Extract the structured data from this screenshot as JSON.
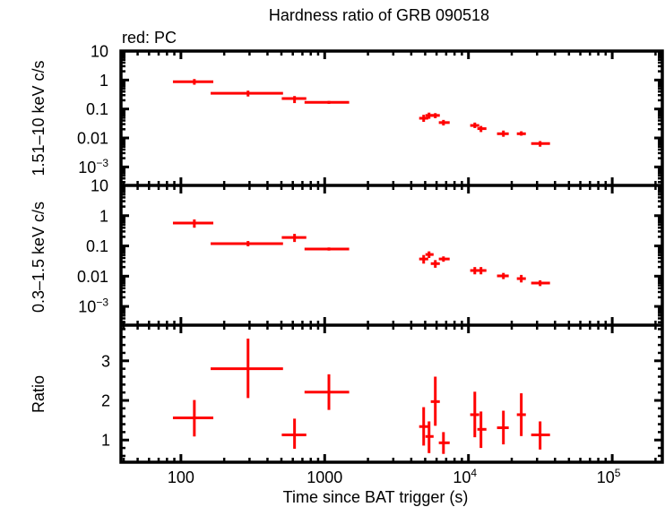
{
  "chart_data": {
    "type": "scatter",
    "title": "Hardness ratio of GRB 090518",
    "annotation": "red: PC",
    "xlabel": "Time since BAT trigger (s)",
    "xscale": "log",
    "xlim": [
      38.3,
      223000
    ],
    "grid": false,
    "xticks": [
      {
        "value": 100,
        "base": "100",
        "exp": ""
      },
      {
        "value": 1000,
        "base": "1000",
        "exp": ""
      },
      {
        "value": 10000,
        "base": "10",
        "exp": "4"
      },
      {
        "value": 100000,
        "base": "10",
        "exp": "5"
      }
    ],
    "series": [
      {
        "name": "PC",
        "color": "#ff0000"
      }
    ],
    "time_bins": [
      {
        "t": 124,
        "tlo": 88,
        "thi": 168
      },
      {
        "t": 293,
        "tlo": 161,
        "thi": 513
      },
      {
        "t": 617,
        "tlo": 503,
        "thi": 745
      },
      {
        "t": 1070,
        "tlo": 724,
        "thi": 1480
      },
      {
        "t": 4880,
        "tlo": 4540,
        "thi": 5250
      },
      {
        "t": 5320,
        "tlo": 5020,
        "thi": 5720
      },
      {
        "t": 5880,
        "tlo": 5470,
        "thi": 6320
      },
      {
        "t": 6700,
        "tlo": 6220,
        "thi": 7400
      },
      {
        "t": 11070,
        "tlo": 10280,
        "thi": 11880
      },
      {
        "t": 12220,
        "tlo": 11530,
        "thi": 13330
      },
      {
        "t": 17500,
        "tlo": 15800,
        "thi": 19060
      },
      {
        "t": 23300,
        "tlo": 21700,
        "thi": 25070
      },
      {
        "t": 31500,
        "tlo": 27300,
        "thi": 36900
      }
    ],
    "panels": [
      {
        "id": "hard",
        "ylabel": "1.51–10 keV c/s",
        "yscale": "log",
        "ylim": [
          0.00023,
          10
        ],
        "yticks": [
          {
            "value": 10,
            "base": "10",
            "exp": ""
          },
          {
            "value": 1,
            "base": "1",
            "exp": ""
          },
          {
            "value": 0.1,
            "base": "0.1",
            "exp": ""
          },
          {
            "value": 0.01,
            "base": "0.01",
            "exp": ""
          },
          {
            "value": 0.001,
            "base": "10",
            "exp": "−3"
          }
        ],
        "points": [
          {
            "y": 0.87,
            "ylo": 0.69,
            "yhi": 1.08
          },
          {
            "y": 0.35,
            "ylo": 0.27,
            "yhi": 0.43
          },
          {
            "y": 0.23,
            "ylo": 0.16,
            "yhi": 0.28
          },
          {
            "y": 0.17,
            "ylo": 0.15,
            "yhi": 0.19
          },
          {
            "y": 0.048,
            "ylo": 0.036,
            "yhi": 0.063
          },
          {
            "y": 0.06,
            "ylo": 0.046,
            "yhi": 0.075
          },
          {
            "y": 0.06,
            "ylo": 0.048,
            "yhi": 0.072
          },
          {
            "y": 0.034,
            "ylo": 0.027,
            "yhi": 0.042
          },
          {
            "y": 0.027,
            "ylo": 0.022,
            "yhi": 0.034
          },
          {
            "y": 0.021,
            "ylo": 0.016,
            "yhi": 0.026
          },
          {
            "y": 0.014,
            "ylo": 0.011,
            "yhi": 0.018
          },
          {
            "y": 0.014,
            "ylo": 0.012,
            "yhi": 0.017
          },
          {
            "y": 0.0064,
            "ylo": 0.005,
            "yhi": 0.0078
          }
        ]
      },
      {
        "id": "soft",
        "ylabel": "0.3–1.5 keV c/s",
        "yscale": "log",
        "ylim": [
          0.00024,
          10
        ],
        "yticks": [
          {
            "value": 10,
            "base": "10",
            "exp": ""
          },
          {
            "value": 1,
            "base": "1",
            "exp": ""
          },
          {
            "value": 0.1,
            "base": "0.1",
            "exp": ""
          },
          {
            "value": 0.01,
            "base": "0.01",
            "exp": ""
          },
          {
            "value": 0.001,
            "base": "10",
            "exp": "−3"
          }
        ],
        "points": [
          {
            "y": 0.57,
            "ylo": 0.4,
            "yhi": 0.75
          },
          {
            "y": 0.119,
            "ylo": 0.097,
            "yhi": 0.145
          },
          {
            "y": 0.19,
            "ylo": 0.135,
            "yhi": 0.25
          },
          {
            "y": 0.079,
            "ylo": 0.07,
            "yhi": 0.089
          },
          {
            "y": 0.037,
            "ylo": 0.026,
            "yhi": 0.05
          },
          {
            "y": 0.052,
            "ylo": 0.04,
            "yhi": 0.066
          },
          {
            "y": 0.026,
            "ylo": 0.019,
            "yhi": 0.034
          },
          {
            "y": 0.037,
            "ylo": 0.03,
            "yhi": 0.045
          },
          {
            "y": 0.0154,
            "ylo": 0.0115,
            "yhi": 0.02
          },
          {
            "y": 0.0154,
            "ylo": 0.0115,
            "yhi": 0.02
          },
          {
            "y": 0.0102,
            "ylo": 0.008,
            "yhi": 0.0128
          },
          {
            "y": 0.0083,
            "ylo": 0.0062,
            "yhi": 0.011
          },
          {
            "y": 0.0059,
            "ylo": 0.0047,
            "yhi": 0.0073
          }
        ]
      },
      {
        "id": "ratio",
        "ylabel": "Ratio",
        "yscale": "linear",
        "ylim": [
          0.44,
          3.9
        ],
        "minor_step": 0.2,
        "yticks": [
          {
            "value": 1,
            "base": "1",
            "exp": ""
          },
          {
            "value": 2,
            "base": "2",
            "exp": ""
          },
          {
            "value": 3,
            "base": "3",
            "exp": ""
          }
        ],
        "points": [
          {
            "y": 1.56,
            "ylo": 1.09,
            "yhi": 2.01
          },
          {
            "y": 2.8,
            "ylo": 2.06,
            "yhi": 3.56
          },
          {
            "y": 1.13,
            "ylo": 0.78,
            "yhi": 1.54
          },
          {
            "y": 2.21,
            "ylo": 1.76,
            "yhi": 2.66
          },
          {
            "y": 1.34,
            "ylo": 0.86,
            "yhi": 1.83
          },
          {
            "y": 1.09,
            "ylo": 0.67,
            "yhi": 1.47
          },
          {
            "y": 1.97,
            "ylo": 1.36,
            "yhi": 2.6
          },
          {
            "y": 0.93,
            "ylo": 0.65,
            "yhi": 1.2
          },
          {
            "y": 1.64,
            "ylo": 1.07,
            "yhi": 2.22
          },
          {
            "y": 1.27,
            "ylo": 0.8,
            "yhi": 1.72
          },
          {
            "y": 1.31,
            "ylo": 0.89,
            "yhi": 1.74
          },
          {
            "y": 1.64,
            "ylo": 1.1,
            "yhi": 2.18
          },
          {
            "y": 1.13,
            "ylo": 0.76,
            "yhi": 1.47
          }
        ]
      }
    ]
  }
}
